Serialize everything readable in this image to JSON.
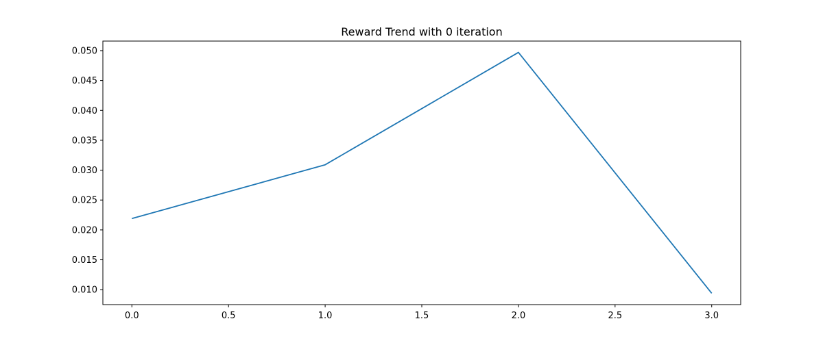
{
  "chart_data": {
    "type": "line",
    "title": "Reward Trend with 0 iteration",
    "xlabel": "",
    "ylabel": "",
    "x": [
      0,
      1,
      2,
      3
    ],
    "series": [
      {
        "values": [
          0.0219,
          0.0309,
          0.0497,
          0.0094
        ],
        "color": "#1f77b4"
      }
    ],
    "xlim": [
      -0.15,
      3.15
    ],
    "ylim": [
      0.0075,
      0.0516
    ],
    "xticks": [
      "0.0",
      "0.5",
      "1.0",
      "1.5",
      "2.0",
      "2.5",
      "3.0"
    ],
    "yticks": [
      "0.010",
      "0.015",
      "0.020",
      "0.025",
      "0.030",
      "0.035",
      "0.040",
      "0.045",
      "0.050"
    ],
    "grid": false,
    "legend": "none"
  }
}
